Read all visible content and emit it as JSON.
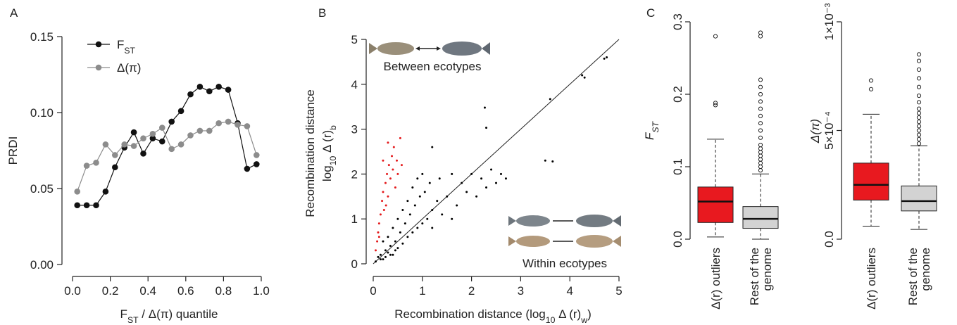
{
  "chart_data": [
    {
      "type": "line",
      "panel_label": "A",
      "xlabel": [
        "F",
        "ST",
        " / Δ(π) quantile"
      ],
      "ylabel": "PRDI",
      "xlim": [
        0,
        1
      ],
      "ylim": [
        0,
        0.15
      ],
      "xticks": [
        {
          "value": 0,
          "label": "0.0"
        },
        {
          "value": 0.2,
          "label": "0.2"
        },
        {
          "value": 0.4,
          "label": "0.4"
        },
        {
          "value": 0.6,
          "label": "0.6"
        },
        {
          "value": 0.8,
          "label": "0.8"
        },
        {
          "value": 1,
          "label": "1.0"
        }
      ],
      "yticks": [
        {
          "value": 0,
          "label": "0.00"
        },
        {
          "value": 0.05,
          "label": "0.05"
        },
        {
          "value": 0.1,
          "label": "0.10"
        },
        {
          "value": 0.15,
          "label": "0.15"
        }
      ],
      "x": [
        0.025,
        0.075,
        0.125,
        0.175,
        0.225,
        0.275,
        0.325,
        0.375,
        0.425,
        0.475,
        0.525,
        0.575,
        0.625,
        0.675,
        0.725,
        0.775,
        0.825,
        0.875,
        0.925,
        0.975
      ],
      "series": [
        {
          "name": [
            "F",
            "ST"
          ],
          "color": "#111111",
          "values": [
            0.039,
            0.039,
            0.039,
            0.048,
            0.064,
            0.077,
            0.087,
            0.073,
            0.083,
            0.081,
            0.094,
            0.101,
            0.112,
            0.117,
            0.114,
            0.117,
            0.115,
            0.093,
            0.063,
            0.066
          ]
        },
        {
          "name": "Δ(π)",
          "color": "#8c8c8c",
          "values": [
            0.048,
            0.065,
            0.067,
            0.079,
            0.072,
            0.079,
            0.078,
            0.083,
            0.086,
            0.09,
            0.076,
            0.079,
            0.085,
            0.088,
            0.088,
            0.093,
            0.094,
            0.092,
            0.091,
            0.072
          ]
        }
      ]
    },
    {
      "type": "scatter",
      "panel_label": "B",
      "xlabel": [
        "Recombination distance (log",
        "10",
        " Δ (r)",
        "w",
        ")"
      ],
      "ylabel": [
        "Recombination distance",
        [
          "log",
          "10",
          " Δ (r)",
          "b"
        ]
      ],
      "annotations": [
        "Between ecotypes",
        "Within ecotypes"
      ],
      "xlim": [
        0,
        5
      ],
      "ylim": [
        0,
        5
      ],
      "xticks": [
        0,
        1,
        2,
        3,
        4,
        5
      ],
      "yticks": [
        0,
        1,
        2,
        3,
        4,
        5
      ],
      "reference_line": {
        "x": [
          0,
          5
        ],
        "y": [
          0,
          5
        ]
      },
      "series": [
        {
          "color": "#000000",
          "x": [
            0.05,
            0.1,
            0.15,
            0.2,
            0.25,
            0.3,
            0.35,
            0.4,
            0.45,
            0.5,
            0.55,
            0.6,
            0.65,
            0.7,
            0.75,
            0.8,
            0.85,
            0.9,
            0.95,
            1.0,
            1.05,
            1.1,
            1.15,
            1.2,
            1.3,
            1.35,
            1.4,
            1.5,
            1.6,
            1.7,
            1.8,
            1.9,
            2.0,
            2.1,
            2.2,
            2.3,
            2.4,
            2.5,
            2.6,
            2.7,
            0.3,
            0.2,
            0.5,
            0.7,
            0.9,
            0.6,
            0.4,
            0.8,
            1.0,
            0.15,
            0.25,
            0.35,
            0.45,
            1.2,
            1.6,
            1.2,
            2.27,
            2.3,
            3.5,
            3.65,
            3.6,
            4.25,
            4.3,
            4.7,
            4.75
          ],
          "y": [
            0.05,
            0.15,
            0.2,
            0.1,
            0.3,
            0.25,
            0.4,
            0.2,
            0.5,
            0.35,
            0.7,
            0.45,
            0.9,
            0.6,
            1.1,
            0.7,
            1.3,
            0.8,
            1.5,
            0.9,
            1.6,
            1.0,
            1.8,
            1.2,
            1.4,
            1.9,
            1.1,
            1.5,
            2.0,
            1.3,
            1.8,
            1.6,
            2.0,
            1.5,
            1.9,
            1.7,
            2.1,
            1.8,
            2.0,
            1.9,
            0.6,
            0.5,
            1.0,
            1.4,
            1.9,
            1.2,
            0.8,
            1.7,
            2.0,
            0.1,
            0.15,
            0.2,
            0.3,
            0.8,
            1.0,
            2.6,
            3.48,
            3.03,
            2.3,
            2.28,
            3.67,
            4.2,
            4.15,
            4.57,
            4.6
          ]
        },
        {
          "color": "#e41a1c",
          "x": [
            0.05,
            0.08,
            0.1,
            0.12,
            0.15,
            0.18,
            0.2,
            0.22,
            0.25,
            0.28,
            0.3,
            0.32,
            0.35,
            0.38,
            0.4,
            0.42,
            0.45,
            0.48,
            0.5,
            0.55,
            0.58,
            0.3,
            0.2,
            0.12,
            0.26
          ],
          "y": [
            0.3,
            0.5,
            0.7,
            0.9,
            1.1,
            1.4,
            1.6,
            1.2,
            1.8,
            2.0,
            1.5,
            2.2,
            1.9,
            2.4,
            2.1,
            2.6,
            1.7,
            2.3,
            2.0,
            2.8,
            2.2,
            2.7,
            2.3,
            0.6,
            1.3
          ]
        }
      ]
    },
    {
      "type": "box",
      "panel_label": "C",
      "ylabel": [
        "F",
        "ST"
      ],
      "ylim": [
        0,
        0.3
      ],
      "yticks": [
        {
          "value": 0,
          "label": "0.0"
        },
        {
          "value": 0.1,
          "label": "0.1"
        },
        {
          "value": 0.2,
          "label": "0.2"
        },
        {
          "value": 0.3,
          "label": "0.3"
        }
      ],
      "categories": [
        [
          "Δ(r) outliers"
        ],
        [
          "Rest of the",
          "genome"
        ]
      ],
      "colors": [
        "#e8191f",
        "#d3d3d3"
      ],
      "boxes": [
        {
          "whislo": 0.003,
          "q1": 0.023,
          "med": 0.052,
          "q3": 0.072,
          "whishi": 0.138,
          "fliers": [
            0.185,
            0.188,
            0.28
          ]
        },
        {
          "whislo": 0.0,
          "q1": 0.015,
          "med": 0.028,
          "q3": 0.045,
          "whishi": 0.09,
          "fliers": [
            0.095,
            0.1,
            0.105,
            0.11,
            0.115,
            0.12,
            0.125,
            0.13,
            0.14,
            0.15,
            0.16,
            0.17,
            0.18,
            0.19,
            0.2,
            0.21,
            0.22,
            0.28,
            0.285
          ]
        }
      ]
    },
    {
      "type": "box",
      "ylabel": "Δ(π)",
      "ylim": [
        0,
        0.001
      ],
      "yticks": [
        {
          "value": 0,
          "label": "0.0"
        },
        {
          "value": 0.0005,
          "label": "5×10⁻⁴"
        },
        {
          "value": 0.001,
          "label": "1×10⁻³"
        }
      ],
      "categories": [
        [
          "Δ(r) outliers"
        ],
        [
          "Rest of the",
          "genome"
        ]
      ],
      "colors": [
        "#e8191f",
        "#d3d3d3"
      ],
      "boxes": [
        {
          "whislo": 6e-05,
          "q1": 0.00018,
          "med": 0.00025,
          "q3": 0.00035,
          "whishi": 0.000575,
          "fliers": [
            0.00069,
            0.00073
          ]
        },
        {
          "whislo": 4.5e-05,
          "q1": 0.00013,
          "med": 0.000175,
          "q3": 0.000245,
          "whishi": 0.00043,
          "fliers": [
            0.00044,
            0.00046,
            0.00048,
            0.0005,
            0.00052,
            0.00054,
            0.00056,
            0.00058,
            0.0006,
            0.00063,
            0.00066,
            0.0007,
            0.00074,
            0.00078,
            0.00082,
            0.00085
          ]
        }
      ]
    }
  ]
}
